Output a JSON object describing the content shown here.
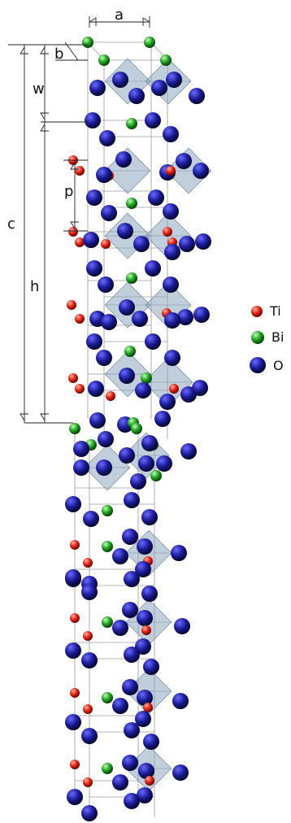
{
  "labels": {
    "a": "a",
    "b": "b",
    "w": "w",
    "c": "c",
    "p": "p",
    "h": "h"
  },
  "legend": [
    {
      "label": "Ti",
      "color": "#e02010"
    },
    {
      "label": "Bi",
      "color": "#20a020"
    },
    {
      "label": "O",
      "color": "#1a1a8c"
    }
  ]
}
